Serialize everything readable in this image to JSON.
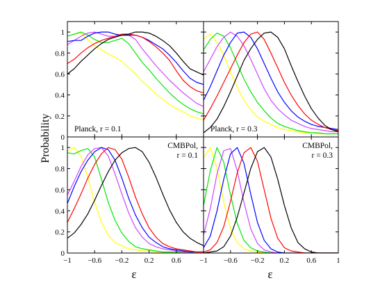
{
  "ylabel": "Probability",
  "xlabel": "ε",
  "series_colors": [
    "#ffff00",
    "#00e600",
    "#cc44ff",
    "#0000ff",
    "#ff0000",
    "#000000"
  ],
  "y_ticks": [
    "0",
    "0.2",
    "0.4",
    "0.6",
    "0.8",
    "1"
  ],
  "x_ticks_left": [
    "−1",
    "−0.6",
    "−0.2",
    "0.2",
    "0.6"
  ],
  "x_ticks_right": [
    "−1",
    "−0.6",
    "−0.2",
    "0.2",
    "0.6",
    "1"
  ],
  "chart_data": [
    {
      "type": "line",
      "panel": "top-left",
      "label_lines": [
        "Planck, r = 0.1"
      ],
      "label_position": "bottom-left",
      "xlim": [
        -1,
        1
      ],
      "ylim": [
        0,
        1.1
      ],
      "x": [
        -1.0,
        -0.9,
        -0.8,
        -0.7,
        -0.6,
        -0.5,
        -0.4,
        -0.3,
        -0.2,
        -0.1,
        0.0,
        0.1,
        0.2,
        0.3,
        0.4,
        0.5,
        0.6,
        0.7,
        0.8,
        0.9,
        1.0
      ],
      "series": [
        {
          "color": "#ffff00",
          "values": [
            0.96,
            0.98,
            0.99,
            0.93,
            0.87,
            0.83,
            0.79,
            0.76,
            0.72,
            0.66,
            0.6,
            0.53,
            0.47,
            0.41,
            0.36,
            0.31,
            0.27,
            0.24,
            0.2,
            0.18,
            0.16
          ]
        },
        {
          "color": "#00e600",
          "values": [
            0.96,
            0.98,
            1.0,
            0.97,
            0.93,
            0.9,
            0.9,
            0.92,
            0.94,
            0.89,
            0.8,
            0.71,
            0.64,
            0.56,
            0.49,
            0.42,
            0.36,
            0.31,
            0.27,
            0.24,
            0.22
          ]
        },
        {
          "color": "#cc44ff",
          "values": [
            0.88,
            0.92,
            0.96,
            0.99,
            1.0,
            0.98,
            0.96,
            0.96,
            0.97,
            0.97,
            0.93,
            0.84,
            0.76,
            0.68,
            0.61,
            0.54,
            0.48,
            0.42,
            0.37,
            0.32,
            0.29
          ]
        },
        {
          "color": "#0000ff",
          "values": [
            0.91,
            0.92,
            0.92,
            0.96,
            0.99,
            1.0,
            1.0,
            0.98,
            0.97,
            0.97,
            0.97,
            0.95,
            0.92,
            0.88,
            0.84,
            0.78,
            0.71,
            0.63,
            0.56,
            0.52,
            0.5
          ]
        },
        {
          "color": "#ff0000",
          "values": [
            0.7,
            0.74,
            0.8,
            0.85,
            0.89,
            0.92,
            0.94,
            0.96,
            0.98,
            0.98,
            0.97,
            0.95,
            0.91,
            0.86,
            0.8,
            0.73,
            0.63,
            0.54,
            0.48,
            0.44,
            0.42
          ]
        },
        {
          "color": "#000000",
          "values": [
            0.6,
            0.65,
            0.72,
            0.78,
            0.84,
            0.89,
            0.93,
            0.95,
            0.97,
            0.98,
            1.0,
            1.0,
            0.99,
            0.96,
            0.92,
            0.87,
            0.8,
            0.72,
            0.65,
            0.62,
            0.59
          ]
        }
      ]
    },
    {
      "type": "line",
      "panel": "top-right",
      "label_lines": [
        "Planck, r = 0.3"
      ],
      "label_position": "bottom-left",
      "xlim": [
        -1,
        1
      ],
      "ylim": [
        0,
        1.1
      ],
      "x": [
        -1.0,
        -0.9,
        -0.8,
        -0.7,
        -0.6,
        -0.5,
        -0.4,
        -0.3,
        -0.2,
        -0.1,
        0.0,
        0.1,
        0.2,
        0.3,
        0.4,
        0.5,
        0.6,
        0.7,
        0.8,
        0.9,
        1.0
      ],
      "series": [
        {
          "color": "#ffff00",
          "values": [
            0.93,
            0.98,
            0.9,
            0.78,
            0.62,
            0.47,
            0.35,
            0.26,
            0.19,
            0.15,
            0.12,
            0.09,
            0.07,
            0.06,
            0.05,
            0.04,
            0.04,
            0.03,
            0.03,
            0.03,
            0.03
          ]
        },
        {
          "color": "#00e600",
          "values": [
            0.83,
            0.93,
            0.99,
            0.96,
            0.85,
            0.7,
            0.55,
            0.43,
            0.33,
            0.25,
            0.18,
            0.13,
            0.1,
            0.08,
            0.06,
            0.05,
            0.04,
            0.04,
            0.03,
            0.03,
            0.03
          ]
        },
        {
          "color": "#cc44ff",
          "values": [
            0.62,
            0.74,
            0.86,
            0.95,
            1.0,
            0.96,
            0.87,
            0.74,
            0.6,
            0.46,
            0.35,
            0.27,
            0.21,
            0.16,
            0.13,
            0.1,
            0.08,
            0.07,
            0.06,
            0.05,
            0.05
          ]
        },
        {
          "color": "#0000ff",
          "values": [
            0.35,
            0.48,
            0.63,
            0.78,
            0.9,
            0.99,
            1.0,
            0.95,
            0.84,
            0.7,
            0.56,
            0.43,
            0.33,
            0.25,
            0.19,
            0.15,
            0.12,
            0.1,
            0.09,
            0.08,
            0.07
          ]
        },
        {
          "color": "#ff0000",
          "values": [
            0.16,
            0.27,
            0.39,
            0.52,
            0.65,
            0.78,
            0.9,
            0.98,
            1.0,
            0.93,
            0.8,
            0.66,
            0.52,
            0.4,
            0.3,
            0.22,
            0.16,
            0.12,
            0.09,
            0.07,
            0.06
          ]
        },
        {
          "color": "#000000",
          "values": [
            0.04,
            0.09,
            0.17,
            0.29,
            0.43,
            0.58,
            0.73,
            0.84,
            0.93,
            0.99,
            1.0,
            0.95,
            0.84,
            0.68,
            0.53,
            0.39,
            0.27,
            0.18,
            0.11,
            0.07,
            0.05
          ]
        }
      ]
    },
    {
      "type": "line",
      "panel": "bottom-left",
      "label_lines": [
        "CMBPol,",
        "r = 0.1"
      ],
      "label_position": "top-right",
      "xlim": [
        -1,
        1
      ],
      "ylim": [
        0,
        1.1
      ],
      "x": [
        -1.0,
        -0.9,
        -0.8,
        -0.7,
        -0.6,
        -0.5,
        -0.4,
        -0.3,
        -0.2,
        -0.1,
        0.0,
        0.1,
        0.2,
        0.3,
        0.4,
        0.5,
        0.6,
        0.7,
        0.8,
        0.9,
        1.0
      ],
      "series": [
        {
          "color": "#ffff00",
          "values": [
            0.96,
            1.0,
            0.92,
            0.72,
            0.48,
            0.29,
            0.17,
            0.1,
            0.07,
            0.04,
            0.03,
            0.02,
            0.02,
            0.01,
            0.01,
            0.01,
            0.01,
            0.01,
            0.01,
            0.01,
            0.01
          ]
        },
        {
          "color": "#00e600",
          "values": [
            0.95,
            0.94,
            0.97,
            0.99,
            0.91,
            0.7,
            0.48,
            0.31,
            0.19,
            0.11,
            0.06,
            0.04,
            0.03,
            0.02,
            0.01,
            0.01,
            0.01,
            0.01,
            0.01,
            0.01,
            0.01
          ]
        },
        {
          "color": "#cc44ff",
          "values": [
            0.55,
            0.68,
            0.82,
            0.93,
            0.99,
            1.0,
            0.92,
            0.75,
            0.56,
            0.38,
            0.24,
            0.15,
            0.09,
            0.06,
            0.04,
            0.03,
            0.02,
            0.01,
            0.01,
            0.01,
            0.01
          ]
        },
        {
          "color": "#0000ff",
          "values": [
            0.47,
            0.63,
            0.77,
            0.88,
            0.96,
            1.0,
            0.98,
            0.88,
            0.71,
            0.52,
            0.36,
            0.24,
            0.15,
            0.1,
            0.06,
            0.04,
            0.03,
            0.02,
            0.01,
            0.01,
            0.01
          ]
        },
        {
          "color": "#ff0000",
          "values": [
            0.29,
            0.42,
            0.56,
            0.71,
            0.84,
            0.94,
            1.0,
            0.98,
            0.89,
            0.72,
            0.53,
            0.37,
            0.24,
            0.15,
            0.09,
            0.06,
            0.04,
            0.03,
            0.02,
            0.01,
            0.01
          ]
        },
        {
          "color": "#000000",
          "values": [
            0.14,
            0.19,
            0.27,
            0.37,
            0.5,
            0.64,
            0.77,
            0.88,
            0.95,
            0.99,
            1.0,
            0.96,
            0.86,
            0.72,
            0.56,
            0.41,
            0.29,
            0.2,
            0.14,
            0.1,
            0.07
          ]
        }
      ]
    },
    {
      "type": "line",
      "panel": "bottom-right",
      "label_lines": [
        "CMBPol,",
        "r = 0.3"
      ],
      "label_position": "top-right",
      "xlim": [
        -1,
        1
      ],
      "ylim": [
        0,
        1.1
      ],
      "x": [
        -1.0,
        -0.9,
        -0.8,
        -0.7,
        -0.6,
        -0.5,
        -0.4,
        -0.3,
        -0.2,
        -0.1,
        0.0,
        0.1,
        0.2,
        0.3,
        0.4,
        0.5,
        0.6,
        0.7,
        0.8,
        0.9,
        1.0
      ],
      "series": [
        {
          "color": "#ffff00",
          "values": [
            0.9,
            1.0,
            0.8,
            0.48,
            0.23,
            0.1,
            0.04,
            0.02,
            0.01,
            0.0,
            0.0,
            0.0,
            0.0,
            0.0,
            0.0,
            0.0,
            0.0,
            0.0,
            0.0,
            0.0,
            0.0
          ]
        },
        {
          "color": "#00e600",
          "values": [
            0.45,
            0.78,
            1.0,
            0.86,
            0.55,
            0.28,
            0.12,
            0.05,
            0.02,
            0.01,
            0.0,
            0.0,
            0.0,
            0.0,
            0.0,
            0.0,
            0.0,
            0.0,
            0.0,
            0.0,
            0.0
          ]
        },
        {
          "color": "#cc44ff",
          "values": [
            0.17,
            0.42,
            0.75,
            0.97,
            0.99,
            0.78,
            0.48,
            0.23,
            0.09,
            0.03,
            0.01,
            0.0,
            0.0,
            0.0,
            0.0,
            0.0,
            0.0,
            0.0,
            0.0,
            0.0,
            0.0
          ]
        },
        {
          "color": "#0000ff",
          "values": [
            0.05,
            0.16,
            0.4,
            0.7,
            0.94,
            1.0,
            0.85,
            0.56,
            0.29,
            0.12,
            0.04,
            0.01,
            0.0,
            0.0,
            0.0,
            0.0,
            0.0,
            0.0,
            0.0,
            0.0,
            0.0
          ]
        },
        {
          "color": "#ff0000",
          "values": [
            0.01,
            0.03,
            0.1,
            0.25,
            0.49,
            0.76,
            0.95,
            1.0,
            0.87,
            0.6,
            0.33,
            0.14,
            0.05,
            0.02,
            0.01,
            0.0,
            0.0,
            0.0,
            0.0,
            0.0,
            0.0
          ]
        },
        {
          "color": "#000000",
          "values": [
            0.0,
            0.01,
            0.02,
            0.06,
            0.16,
            0.34,
            0.57,
            0.8,
            0.96,
            1.0,
            0.91,
            0.7,
            0.45,
            0.24,
            0.1,
            0.04,
            0.01,
            0.0,
            0.0,
            0.0,
            0.0
          ]
        }
      ]
    }
  ]
}
